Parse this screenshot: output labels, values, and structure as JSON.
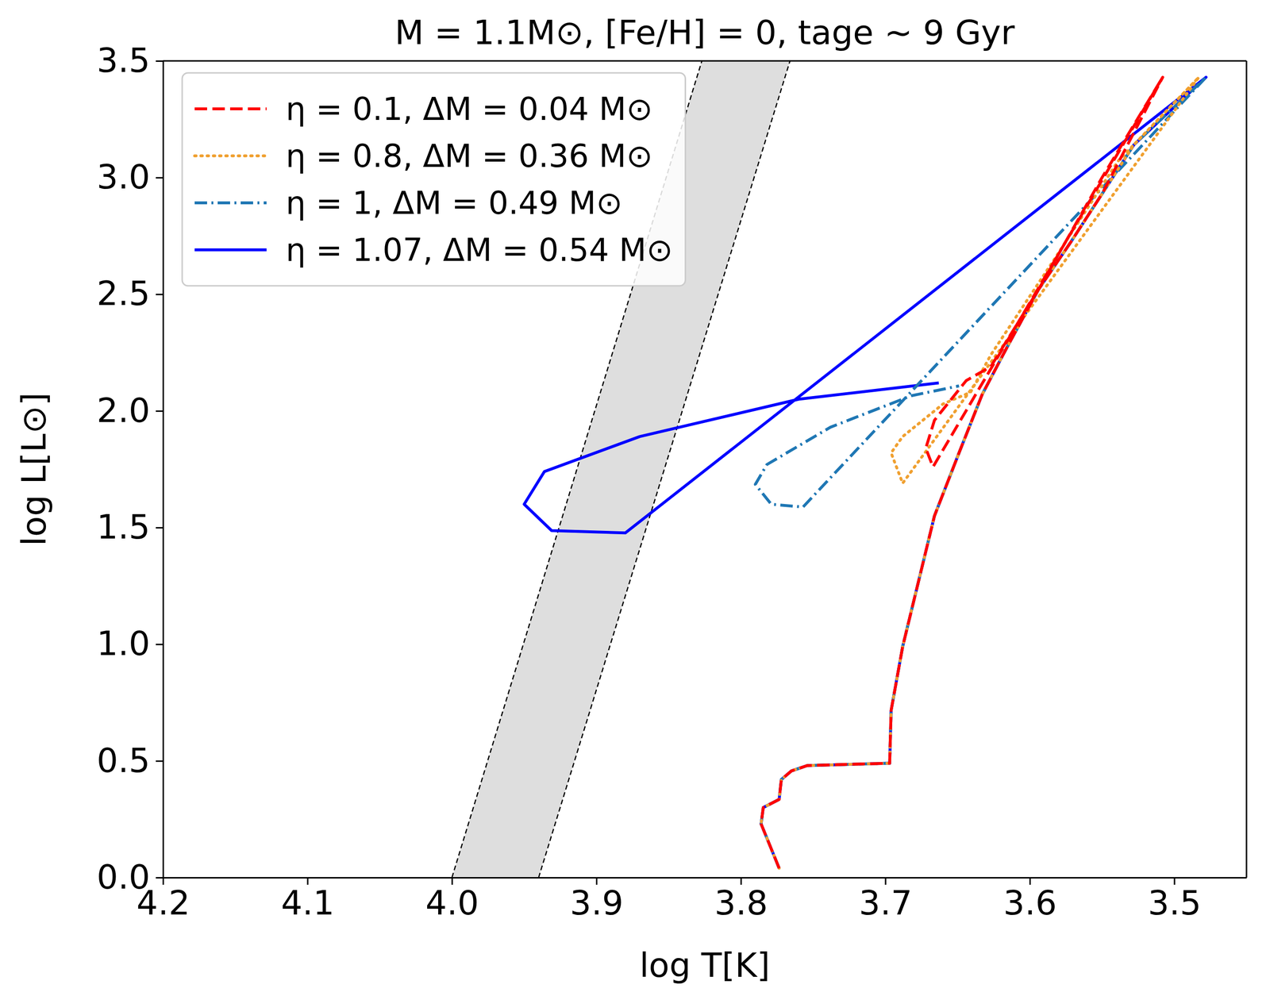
{
  "chart_data": {
    "type": "line",
    "title": "M = 1.1M⊙, [Fe/H] = 0, tage ∼ 9 Gyr",
    "x_label": "log T[K]",
    "y_label": "log L[L⊙]",
    "xlim": [
      4.2,
      3.45
    ],
    "ylim": [
      0,
      3.5
    ],
    "xticks": [
      4.2,
      4.1,
      {
        "value": 4,
        "label": "4.0"
      },
      3.9,
      3.8,
      3.7,
      3.6,
      3.5
    ],
    "yticks": [
      {
        "value": 0,
        "label": "0.0"
      },
      0.5,
      {
        "value": 1,
        "label": "1.0"
      },
      1.5,
      {
        "value": 2,
        "label": "2.0"
      },
      2.5,
      {
        "value": 3,
        "label": "3.0"
      },
      3.5
    ],
    "grid": false,
    "legend": "upper left",
    "instability_strip": {
      "color": "#c8c8c8",
      "edges": [
        {
          "x": [
            4.0,
            3.827
          ],
          "y": [
            0,
            3.5
          ]
        },
        {
          "x": [
            3.94,
            3.766
          ],
          "y": [
            0,
            3.5
          ]
        }
      ]
    },
    "series": [
      {
        "name": "η = 0.1, ΔM = 0.04 M⊙",
        "color": "#ff0000",
        "line_style": "dashed",
        "x": [
          3.7735,
          3.786,
          3.7845,
          3.7735,
          3.772,
          3.765,
          3.754,
          3.697,
          3.696,
          3.688,
          3.677,
          3.666,
          3.649,
          3.633,
          3.616,
          3.594,
          3.572,
          3.55,
          3.508,
          3.667,
          3.672,
          3.666,
          3.644,
          3.627,
          3.594,
          3.55,
          3.508
        ],
        "values": [
          0.04,
          0.23,
          0.3,
          0.335,
          0.42,
          0.457,
          0.48,
          0.49,
          0.716,
          0.99,
          1.27,
          1.55,
          1.82,
          2.07,
          2.27,
          2.52,
          2.72,
          2.93,
          3.43,
          1.76,
          1.84,
          1.96,
          2.13,
          2.19,
          2.52,
          3.0,
          3.43
        ]
      },
      {
        "name": "η = 0.8, ΔM = 0.36 M⊙",
        "color": "#f0a030",
        "line_style": "dotted",
        "x": [
          3.7735,
          3.786,
          3.7845,
          3.7735,
          3.772,
          3.765,
          3.754,
          3.697,
          3.696,
          3.688,
          3.677,
          3.666,
          3.649,
          3.633,
          3.616,
          3.594,
          3.572,
          3.55,
          3.528,
          3.483,
          3.688,
          3.696,
          3.688,
          3.66,
          3.641,
          3.627,
          3.583,
          3.539,
          3.483
        ],
        "values": [
          0.04,
          0.23,
          0.3,
          0.335,
          0.42,
          0.457,
          0.48,
          0.49,
          0.716,
          0.99,
          1.27,
          1.55,
          1.82,
          2.07,
          2.27,
          2.52,
          2.72,
          2.93,
          3.14,
          3.43,
          1.69,
          1.82,
          1.89,
          2.03,
          2.08,
          2.24,
          2.65,
          3.07,
          3.43
        ]
      },
      {
        "name": "η = 1, ΔM = 0.49 M⊙",
        "color": "#1f77b4",
        "line_style": "dashdot",
        "x": [
          3.7735,
          3.786,
          3.7845,
          3.7735,
          3.772,
          3.765,
          3.754,
          3.697,
          3.696,
          3.688,
          3.677,
          3.666,
          3.649,
          3.633,
          3.616,
          3.594,
          3.572,
          3.55,
          3.528,
          3.478,
          3.757,
          3.779,
          3.79,
          3.782,
          3.738,
          3.682,
          3.649
        ],
        "values": [
          0.04,
          0.23,
          0.3,
          0.335,
          0.42,
          0.457,
          0.48,
          0.49,
          0.716,
          0.99,
          1.27,
          1.55,
          1.82,
          2.07,
          2.27,
          2.52,
          2.72,
          2.93,
          3.14,
          3.43,
          1.588,
          1.6,
          1.685,
          1.77,
          1.93,
          2.065,
          2.107
        ]
      },
      {
        "name": "η = 1.07, ΔM = 0.54 M⊙",
        "color": "#0000ff",
        "line_style": "solid",
        "x": [
          3.7735,
          3.786,
          3.7845,
          3.7735,
          3.772,
          3.765,
          3.754,
          3.697,
          3.696,
          3.688,
          3.677,
          3.666,
          3.649,
          3.633,
          3.616,
          3.594,
          3.572,
          3.55,
          3.528,
          3.478,
          3.88,
          3.931,
          3.95,
          3.936,
          3.87,
          3.76,
          3.663
        ],
        "values": [
          0.04,
          0.23,
          0.3,
          0.335,
          0.42,
          0.457,
          0.48,
          0.49,
          0.716,
          0.99,
          1.27,
          1.55,
          1.82,
          2.07,
          2.27,
          2.52,
          2.72,
          2.93,
          3.14,
          3.43,
          1.477,
          1.487,
          1.6,
          1.74,
          1.89,
          2.05,
          2.12
        ]
      }
    ]
  }
}
